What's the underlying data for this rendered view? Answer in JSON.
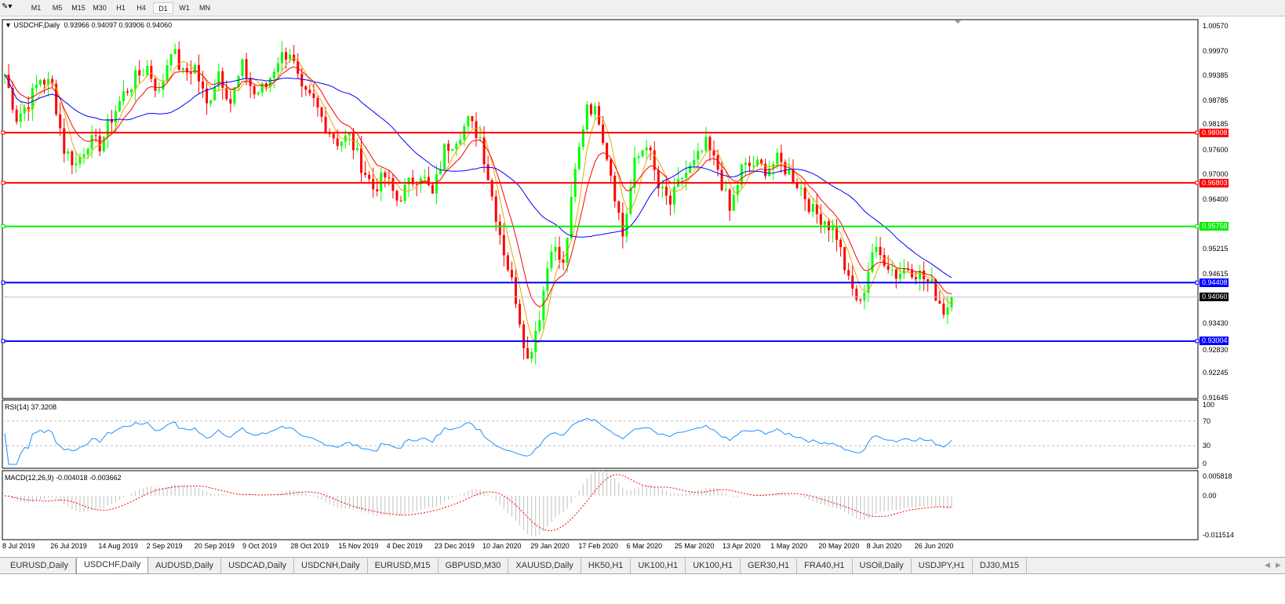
{
  "toolbar": {
    "timeframes": [
      "M1",
      "M5",
      "M15",
      "M30",
      "H1",
      "H4",
      "D1",
      "W1",
      "MN"
    ],
    "active": "D1"
  },
  "main": {
    "symbol_label": "USDCHF,Daily",
    "ohlc": "0.93966 0.94097 0.93906 0.94060"
  },
  "rsi": {
    "label": "RSI(14) 37.3208",
    "levels": [
      70,
      30
    ],
    "axis": [
      "100",
      "70",
      "30",
      "0"
    ]
  },
  "macd": {
    "label": "MACD(12,26,9) -0.004018 -0.003662",
    "axis": [
      "0.005818",
      "0.00",
      "-0.011514"
    ]
  },
  "price_axis": [
    "1.00570",
    "0.99970",
    "0.99385",
    "0.98785",
    "0.98185",
    "0.97600",
    "0.97000",
    "0.96400",
    "0.95215",
    "0.94615",
    "0.93430",
    "0.92830",
    "0.92245",
    "0.91645"
  ],
  "date_axis": [
    "8 Jul 2019",
    "26 Jul 2019",
    "14 Aug 2019",
    "2 Sep 2019",
    "20 Sep 2019",
    "9 Oct 2019",
    "28 Oct 2019",
    "15 Nov 2019",
    "4 Dec 2019",
    "23 Dec 2019",
    "10 Jan 2020",
    "29 Jan 2020",
    "17 Feb 2020",
    "6 Mar 2020",
    "25 Mar 2020",
    "13 Apr 2020",
    "1 May 2020",
    "20 May 2020",
    "8 Jun 2020",
    "26 Jun 2020"
  ],
  "levels": [
    {
      "price": "0.98008",
      "color": "#ff0000"
    },
    {
      "price": "0.96803",
      "color": "#ff0000"
    },
    {
      "price": "0.95758",
      "color": "#00ee00"
    },
    {
      "price": "0.94408",
      "color": "#0000ff"
    },
    {
      "price": "0.93004",
      "color": "#0000ff"
    }
  ],
  "current_price": "0.94060",
  "colors": {
    "bull": "#00ff00",
    "bear": "#ff0000",
    "ma_fast": "#e8a800",
    "ma_mid": "#ff0000",
    "ma_slow": "#0000ff",
    "rsi": "#1e90ff",
    "macd_signal": "#ff0000",
    "macd_hist": "#c0c0c0"
  },
  "chart_data": {
    "type": "candlestick",
    "price_range": [
      0.91645,
      1.0057
    ],
    "closes": [
      0.994,
      0.9837,
      0.9874,
      0.9931,
      0.9912,
      0.9761,
      0.9724,
      0.978,
      0.9771,
      0.9837,
      0.9893,
      0.9931,
      0.9959,
      0.9893,
      1.0006,
      0.994,
      0.9959,
      0.9865,
      0.995,
      0.9874,
      0.9959,
      0.9893,
      0.9912,
      0.9978,
      0.9997,
      0.9893,
      0.9874,
      0.9818,
      0.978,
      0.979,
      0.9724,
      0.9667,
      0.9695,
      0.9639,
      0.9677,
      0.9705,
      0.9648,
      0.9761,
      0.979,
      0.9827,
      0.979,
      0.9648,
      0.9517,
      0.9404,
      0.9253,
      0.9366,
      0.9535,
      0.9479,
      0.9705,
      0.9874,
      0.9837,
      0.9705,
      0.9554,
      0.9724,
      0.978,
      0.9667,
      0.963,
      0.9695,
      0.9724,
      0.9771,
      0.9714,
      0.9611,
      0.9714,
      0.9724,
      0.9714,
      0.9733,
      0.9705,
      0.9667,
      0.9611,
      0.9592,
      0.9554,
      0.9441,
      0.9385,
      0.9517,
      0.9498,
      0.946,
      0.9479,
      0.946,
      0.9432,
      0.9375,
      0.9406
    ]
  },
  "tabs": [
    "EURUSD,Daily",
    "USDCHF,Daily",
    "AUDUSD,Daily",
    "USDCAD,Daily",
    "USDCNH,Daily",
    "EURUSD,M15",
    "GBPUSD,M30",
    "XAUUSD,Daily",
    "HK50,H1",
    "UK100,H1",
    "UK100,H1",
    "GER30,H1",
    "FRA40,H1",
    "USOil,Daily",
    "USDJPY,H1",
    "DJ30,M15"
  ],
  "active_tab": "USDCHF,Daily"
}
